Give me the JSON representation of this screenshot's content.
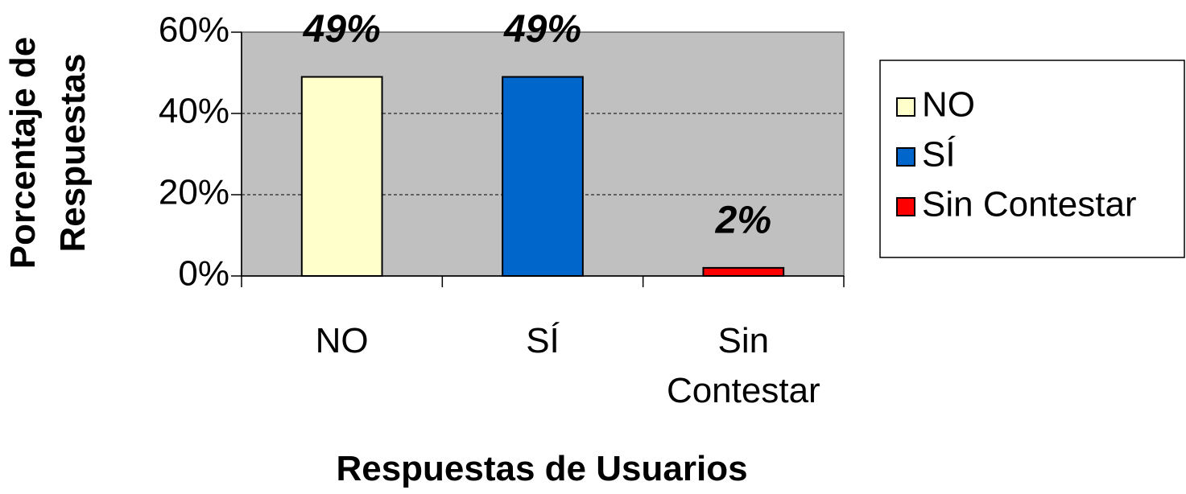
{
  "chart_data": {
    "type": "bar",
    "x_label": "Respuestas de Usuarios",
    "y_label": "Porcentaje de Respuestas",
    "categories": [
      "NO",
      "SÍ",
      "Sin Contestar"
    ],
    "values": [
      49,
      49,
      2
    ],
    "value_labels": [
      "49%",
      "49%",
      "2%"
    ],
    "colors": [
      "#ffffcc",
      "#0066cc",
      "#ff0000"
    ],
    "ylim": [
      0,
      60
    ],
    "yticks": [
      {
        "value": 0,
        "label": "0%"
      },
      {
        "value": 20,
        "label": "20%"
      },
      {
        "value": 40,
        "label": "40%"
      },
      {
        "value": 60,
        "label": "60%"
      }
    ],
    "grid": true,
    "legend": "right"
  }
}
